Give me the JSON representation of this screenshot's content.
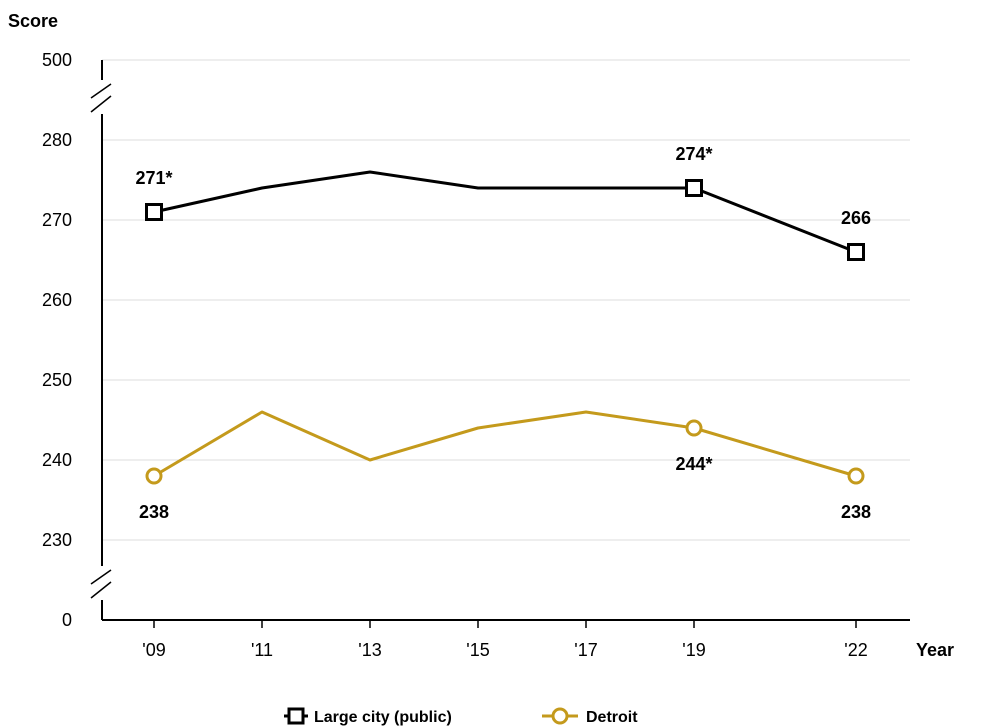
{
  "chart_data": {
    "type": "line",
    "ylabel": "Score",
    "xlabel": "Year",
    "categories": [
      "'09",
      "'11",
      "'13",
      "'15",
      "'17",
      "'19",
      "'22"
    ],
    "y_ticks": [
      "500",
      "280",
      "270",
      "260",
      "250",
      "240",
      "230",
      "0"
    ],
    "y_range_shown": [
      230,
      280
    ],
    "y_axis_breaks": [
      "between 280 and 500",
      "between 0 and 230"
    ],
    "grid": "horizontal",
    "legend_position": "bottom-center",
    "series": [
      {
        "name": "Large city (public)",
        "color": "#000000",
        "marker": "square",
        "values": [
          271,
          274,
          276,
          274,
          274,
          274,
          266
        ],
        "labels": [
          {
            "index": 0,
            "text": "271*",
            "position": "above"
          },
          {
            "index": 5,
            "text": "274*",
            "position": "above"
          },
          {
            "index": 6,
            "text": "266",
            "position": "above"
          }
        ]
      },
      {
        "name": "Detroit",
        "color": "#C49A1C",
        "marker": "circle",
        "values": [
          238,
          246,
          240,
          244,
          246,
          244,
          238
        ],
        "labels": [
          {
            "index": 0,
            "text": "238",
            "position": "below"
          },
          {
            "index": 5,
            "text": "244*",
            "position": "below"
          },
          {
            "index": 6,
            "text": "238",
            "position": "below"
          }
        ]
      }
    ]
  }
}
